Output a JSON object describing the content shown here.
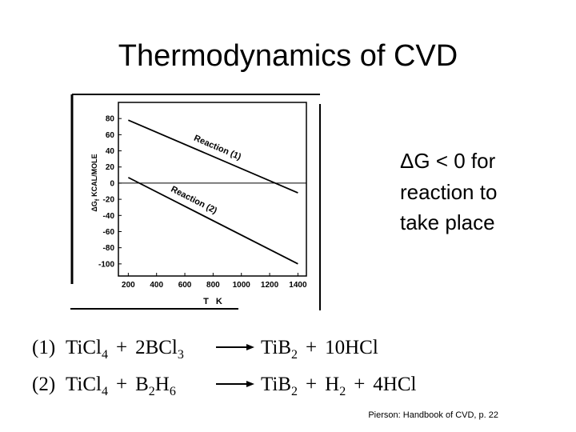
{
  "title": "Thermodynamics of CVD",
  "note": [
    "ΔG < 0 for",
    "reaction to",
    "take place"
  ],
  "chart_data": {
    "type": "line",
    "x": [
      200,
      1400
    ],
    "series": [
      {
        "name": "Reaction (1)",
        "color": "#000000",
        "values": [
          78,
          -12
        ]
      },
      {
        "name": "Reaction (2)",
        "color": "#000000",
        "values": [
          7,
          -100
        ]
      }
    ],
    "xlabel": "T K",
    "ylabel": {
      "text": "ΔG",
      "sub": "f",
      "rest": "KCAL/MOLE"
    },
    "xlim": [
      130,
      1460
    ],
    "xticks": [
      200,
      400,
      600,
      800,
      1000,
      1200,
      1400
    ],
    "ylim": [
      -115,
      100
    ],
    "yticks": [
      80,
      60,
      40,
      20,
      0,
      -20,
      -40,
      -60,
      -80,
      -100
    ],
    "zero_line": true,
    "grid": false
  },
  "equations": [
    {
      "number": "(1)",
      "left": [
        [
          [
            "TiCl",
            "4"
          ]
        ],
        "+",
        [
          [
            "2BCl",
            "3"
          ]
        ]
      ],
      "right": [
        [
          [
            "TiB",
            "2"
          ]
        ],
        "+",
        [
          [
            "10HCl"
          ]
        ]
      ]
    },
    {
      "number": "(2)",
      "left": [
        [
          [
            "TiCl",
            "4"
          ]
        ],
        "+",
        [
          [
            "B",
            "2"
          ],
          [
            "H",
            "6"
          ]
        ]
      ],
      "right": [
        [
          [
            "TiB",
            "2"
          ]
        ],
        "+",
        [
          [
            "H",
            "2"
          ]
        ],
        "+",
        [
          [
            "4HCl"
          ]
        ]
      ]
    }
  ],
  "citation": "Pierson: Handbook of CVD, p. 22"
}
